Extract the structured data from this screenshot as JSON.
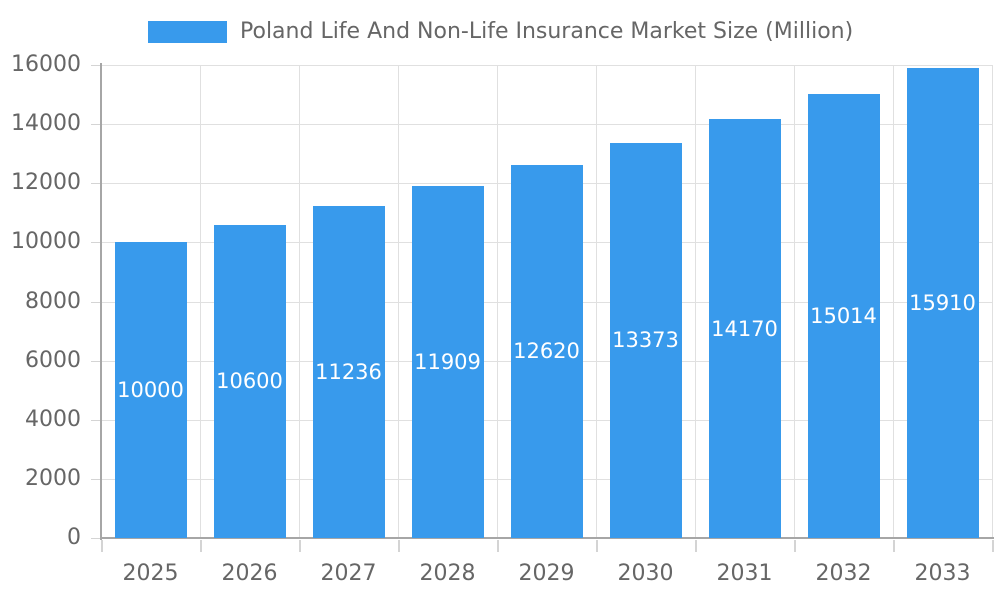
{
  "chart_data": {
    "type": "bar",
    "title": "Poland Life And Non-Life Insurance Market Size (Million)",
    "legend": {
      "label": "Poland Life And Non-Life Insurance Market Size (Million)",
      "position": "top"
    },
    "categories": [
      "2025",
      "2026",
      "2027",
      "2028",
      "2029",
      "2030",
      "2031",
      "2032",
      "2033"
    ],
    "series": [
      {
        "name": "Poland Life And Non-Life Insurance Market Size (Million)",
        "values": [
          10000,
          10600,
          11236,
          11909,
          12620,
          13373,
          14170,
          15014,
          15910
        ]
      }
    ],
    "value_labels": [
      "10000",
      "10600",
      "11236",
      "11909",
      "12620",
      "13373",
      "14170",
      "15014",
      "15910"
    ],
    "xlabel": "",
    "ylabel": "",
    "ylim": [
      0,
      16000
    ],
    "y_ticks": [
      0,
      2000,
      4000,
      6000,
      8000,
      10000,
      12000,
      14000,
      16000
    ],
    "grid": true,
    "colors": {
      "bar": "#389AEC",
      "axis_text": "#666666",
      "value_label_text": "#FFFFFF",
      "gridline": "#E0E0E0",
      "axis_line": "#A6A6A6",
      "tick_mark": "#D4D4D4",
      "background": "#FFFFFF"
    }
  }
}
